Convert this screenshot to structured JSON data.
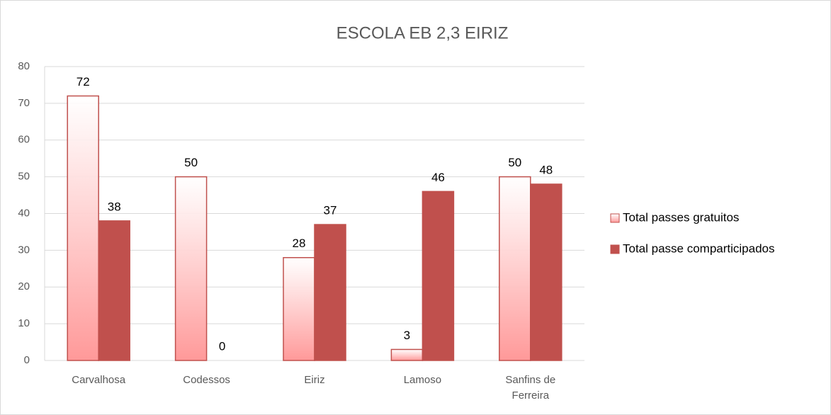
{
  "chart_data": {
    "type": "bar",
    "title": "ESCOLA EB 2,3 EIRIZ",
    "categories": [
      "Carvalhosa",
      "Codessos",
      "Eiriz",
      "Lamoso",
      "Sanfins de Ferreira"
    ],
    "series": [
      {
        "name": "Total passes gratuitos",
        "color": "#ff9999",
        "values": [
          72,
          50,
          28,
          3,
          50
        ]
      },
      {
        "name": "Total passe comparticipados",
        "color": "#c0504d",
        "values": [
          38,
          0,
          37,
          46,
          48
        ]
      }
    ],
    "ylim": [
      0,
      80
    ],
    "yticks": [
      0,
      10,
      20,
      30,
      40,
      50,
      60,
      70,
      80
    ],
    "grid": true,
    "legend": "right"
  }
}
